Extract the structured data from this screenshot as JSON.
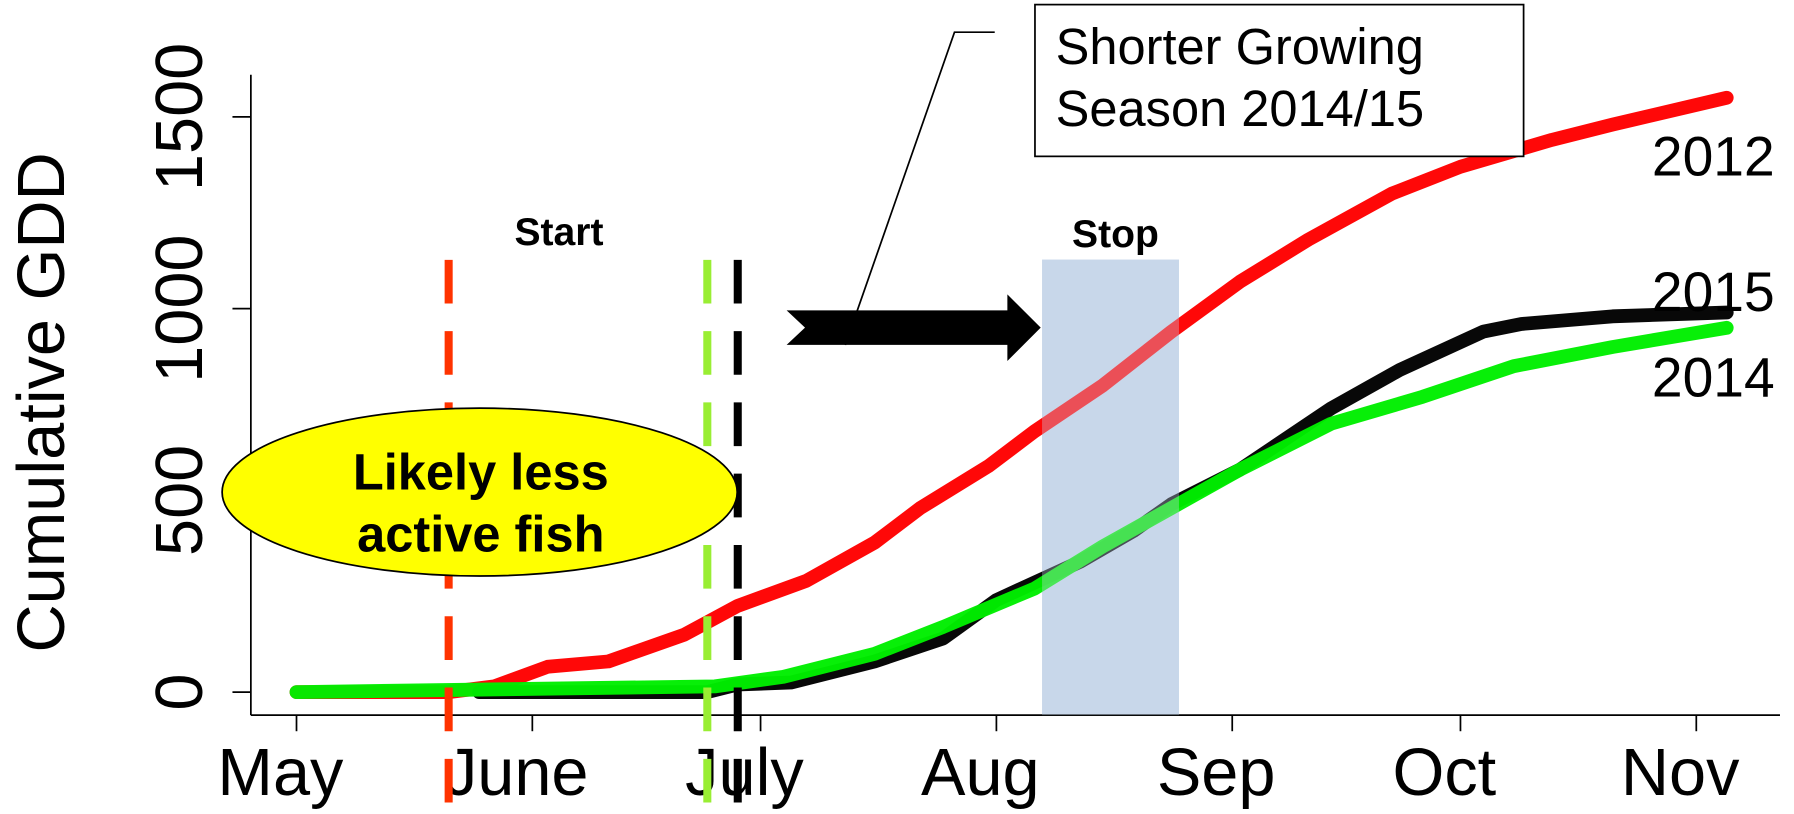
{
  "chart_data": {
    "type": "line",
    "ylabel": "Cumulative GDD",
    "xlim": [
      -6,
      195
    ],
    "ylim": [
      -60,
      1610
    ],
    "xticks": [
      {
        "value": 0,
        "label": "May"
      },
      {
        "value": 31,
        "label": "June"
      },
      {
        "value": 61,
        "label": "July"
      },
      {
        "value": 92,
        "label": "Aug"
      },
      {
        "value": 123,
        "label": "Sep"
      },
      {
        "value": 153,
        "label": "Oct"
      },
      {
        "value": 184,
        "label": "Nov"
      }
    ],
    "yticks": [
      0,
      500,
      1000,
      1500
    ],
    "series": [
      {
        "name": "2012",
        "color": "#ff0000",
        "x": [
          0,
          20,
          26,
          33,
          41,
          51,
          58,
          67,
          76,
          82,
          91,
          97,
          106,
          115,
          124,
          133,
          144,
          153,
          165,
          173,
          188
        ],
        "values": [
          0,
          0,
          15,
          66,
          80,
          150,
          225,
          290,
          390,
          480,
          590,
          680,
          800,
          940,
          1070,
          1180,
          1300,
          1370,
          1440,
          1480,
          1550
        ]
      },
      {
        "name": "2015",
        "color": "#000000",
        "x": [
          24,
          54,
          58,
          65,
          76,
          85,
          92,
          103,
          110,
          115,
          124,
          136,
          145,
          156,
          161,
          173,
          188
        ],
        "values": [
          0,
          0,
          20,
          25,
          80,
          140,
          240,
          340,
          420,
          490,
          580,
          740,
          840,
          940,
          960,
          980,
          990
        ]
      },
      {
        "name": "2014",
        "color": "#00ee00",
        "x": [
          0,
          55,
          64,
          76,
          85,
          97,
          106,
          115,
          124,
          136,
          148,
          160,
          173,
          188
        ],
        "values": [
          0,
          15,
          40,
          100,
          170,
          270,
          380,
          480,
          580,
          700,
          770,
          850,
          900,
          950
        ]
      }
    ],
    "vlines": [
      {
        "x": 20,
        "color": "#ff3300"
      },
      {
        "x": 54,
        "color": "#99ee33"
      },
      {
        "x": 58,
        "color": "#000000"
      }
    ],
    "span": {
      "x": [
        98,
        116
      ],
      "top": 1128,
      "color": "#c8d8ea"
    },
    "annotations": [
      {
        "text": "Start"
      },
      {
        "text": "Stop"
      },
      {
        "lines": [
          "Likely less",
          "active fish"
        ]
      },
      {
        "lines": [
          "Shorter Growing",
          "Season 2014/15"
        ]
      }
    ]
  }
}
